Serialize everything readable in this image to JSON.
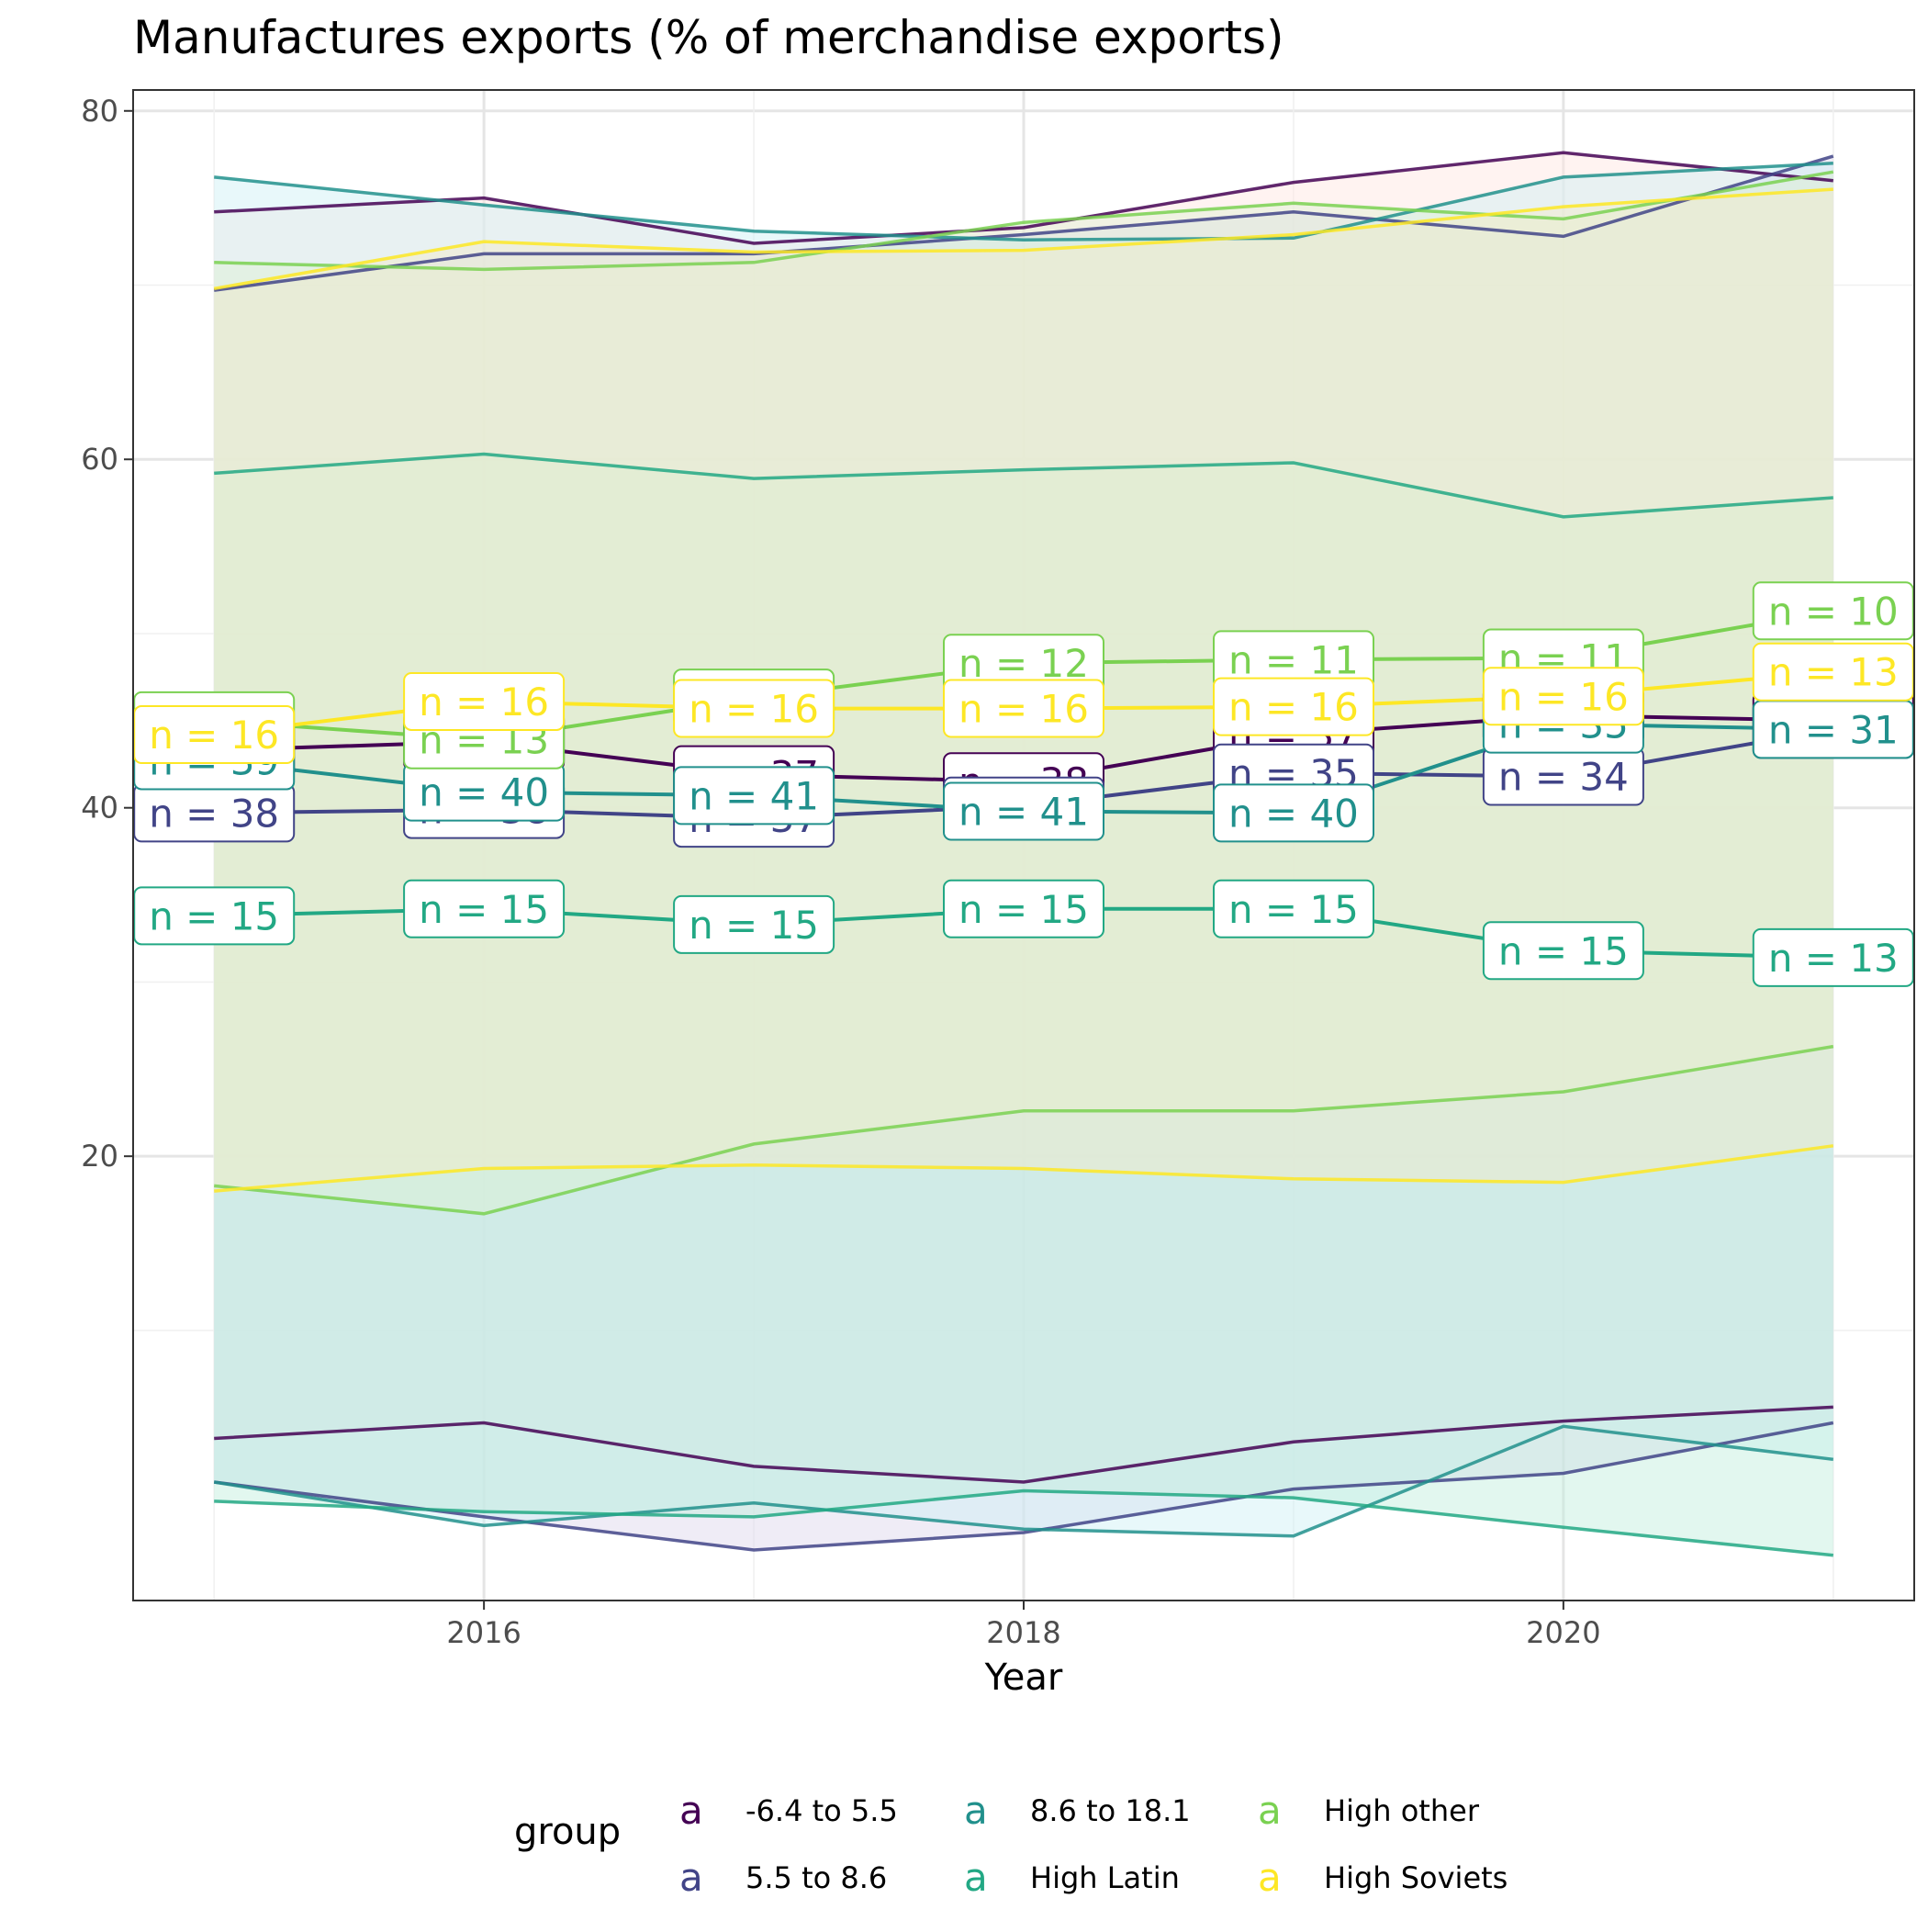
{
  "chart_data": {
    "type": "line",
    "title": "Manufactures exports (% of merchandise exports)",
    "xlabel": "Year",
    "ylabel": "",
    "xlim": [
      2014.7,
      2021.3
    ],
    "ylim": [
      -5.5,
      81.2
    ],
    "x_ticks": [
      2016,
      2018,
      2020
    ],
    "y_ticks": [
      20,
      40,
      60,
      80
    ],
    "grid": true,
    "legend": {
      "title": "group",
      "position": "bottom",
      "glyph": "a",
      "entries": [
        {
          "name": "-6.4 to 5.5",
          "color": "#440154"
        },
        {
          "name": "8.6 to 18.1",
          "color": "#21908C"
        },
        {
          "name": "High other",
          "color": "#7AD151"
        },
        {
          "name": "5.5 to 8.6",
          "color": "#414487"
        },
        {
          "name": "High Latin",
          "color": "#22A884"
        },
        {
          "name": "High Soviets",
          "color": "#FDE725"
        }
      ]
    },
    "x": [
      2015,
      2016,
      2017,
      2018,
      2019,
      2020,
      2021
    ],
    "series": [
      {
        "name": "-6.4 to 5.5",
        "color": "#440154",
        "fill": "#FFE4E1",
        "upper": [
          74.2,
          75.0,
          72.4,
          73.3,
          75.9,
          77.6,
          76.0
        ],
        "mean": [
          43.3,
          43.8,
          41.9,
          41.5,
          44.2,
          45.3,
          45.0
        ],
        "lower": [
          3.8,
          4.7,
          2.2,
          1.3,
          3.6,
          4.8,
          5.6
        ],
        "labels": [
          "n = 39",
          "n = 38",
          "n = 37",
          "n = 38",
          "n = 37",
          "n = 35",
          "n = 36"
        ]
      },
      {
        "name": "5.5 to 8.6",
        "color": "#414487",
        "fill": "#DCD5EC",
        "upper": [
          69.7,
          71.8,
          71.8,
          72.9,
          74.2,
          72.8,
          77.4
        ],
        "mean": [
          39.7,
          39.9,
          39.4,
          40.1,
          42.0,
          41.8,
          44.5
        ],
        "lower": [
          1.3,
          -0.7,
          -2.6,
          -1.6,
          0.9,
          1.8,
          4.7
        ],
        "labels": [
          "n = 38",
          "n = 38",
          "n = 37",
          "n = 38",
          "n = 35",
          "n = 34",
          "n = 36"
        ]
      },
      {
        "name": "8.6 to 18.1",
        "color": "#21908C",
        "fill": "#CDEFF5",
        "upper": [
          76.2,
          74.6,
          73.1,
          72.6,
          72.7,
          76.2,
          77.0
        ],
        "mean": [
          42.7,
          40.9,
          40.7,
          39.8,
          39.7,
          44.8,
          44.5
        ],
        "lower": [
          1.3,
          -1.2,
          0.1,
          -1.4,
          -1.8,
          4.5,
          2.6
        ],
        "labels": [
          "n = 39",
          "n = 40",
          "n = 41",
          "n = 41",
          "n = 40",
          "n = 35",
          "n = 31"
        ]
      },
      {
        "name": "High Latin",
        "color": "#22A884",
        "fill": "#BEEEDC",
        "upper": [
          59.2,
          60.3,
          58.9,
          59.4,
          59.8,
          56.7,
          57.8
        ],
        "mean": [
          33.8,
          34.2,
          33.3,
          34.2,
          34.2,
          31.8,
          31.4
        ],
        "lower": [
          0.2,
          -0.4,
          -0.7,
          0.8,
          0.4,
          -1.3,
          -2.9
        ],
        "labels": [
          "n = 15",
          "n = 15",
          "n = 15",
          "n = 15",
          "n = 15",
          "n = 15",
          "n = 13"
        ]
      },
      {
        "name": "High other",
        "color": "#7AD151",
        "fill": "#DEF2D2",
        "upper": [
          71.3,
          70.9,
          71.3,
          73.6,
          74.7,
          73.8,
          76.5
        ],
        "mean": [
          45.0,
          43.9,
          46.3,
          48.3,
          48.5,
          48.6,
          51.3
        ],
        "lower": [
          18.3,
          16.7,
          20.7,
          22.6,
          22.6,
          23.7,
          26.3
        ],
        "labels": [
          "n = 13",
          "n = 13",
          "n = 12",
          "n = 12",
          "n = 11",
          "n = 11",
          "n = 10"
        ]
      },
      {
        "name": "High Soviets",
        "color": "#FDE725",
        "fill": "#F4ECC8",
        "upper": [
          69.8,
          72.5,
          71.9,
          72.0,
          72.9,
          74.5,
          75.5
        ],
        "mean": [
          44.2,
          46.1,
          45.7,
          45.7,
          45.8,
          46.4,
          47.8
        ],
        "lower": [
          18.0,
          19.3,
          19.5,
          19.3,
          18.7,
          18.5,
          20.6
        ],
        "labels": [
          "n = 16",
          "n = 16",
          "n = 16",
          "n = 16",
          "n = 16",
          "n = 16",
          "n = 13"
        ]
      }
    ]
  }
}
